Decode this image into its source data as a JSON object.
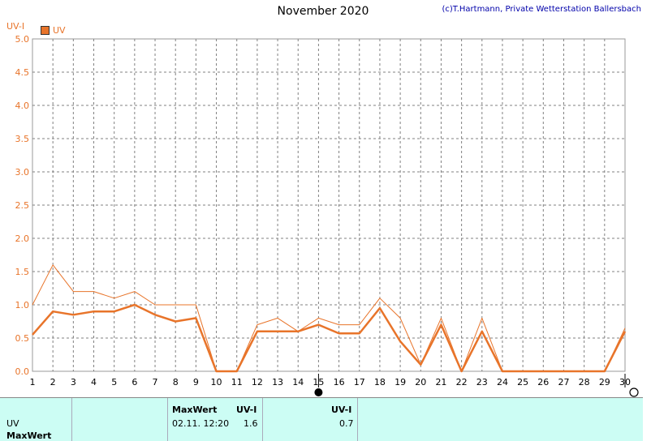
{
  "title": "November 2020",
  "copyright": "(c)T.Hartmann, Private Wetterstation Ballersbach",
  "y_unit": "UV-I",
  "legend": {
    "label": "UV",
    "color": "#e8742a"
  },
  "chart_data": {
    "type": "line",
    "title": "November 2020",
    "ylabel": "UV-I",
    "ylim": [
      0,
      5
    ],
    "yticks": [
      "0.0",
      "0.5",
      "1.0",
      "1.5",
      "2.0",
      "2.5",
      "3.0",
      "3.5",
      "4.0",
      "4.5",
      "5.0"
    ],
    "x": [
      1,
      2,
      3,
      4,
      5,
      6,
      7,
      8,
      9,
      10,
      11,
      12,
      13,
      14,
      15,
      16,
      17,
      18,
      19,
      20,
      21,
      22,
      23,
      24,
      25,
      26,
      27,
      28,
      29,
      30
    ],
    "series": [
      {
        "name": "UV",
        "color": "#e8742a",
        "line": "thick",
        "values": [
          0.55,
          0.9,
          0.85,
          0.9,
          0.9,
          1.0,
          0.85,
          0.75,
          0.8,
          0.0,
          0.0,
          0.6,
          0.6,
          0.6,
          0.7,
          0.57,
          0.57,
          0.95,
          0.45,
          0.1,
          0.7,
          0.0,
          0.6,
          0.0,
          0.0,
          0.0,
          0.0,
          0.0,
          0.0,
          0.6
        ]
      },
      {
        "color": "#e8742a",
        "line": "thin",
        "values": [
          1.0,
          1.6,
          1.2,
          1.2,
          1.1,
          1.2,
          1.0,
          1.0,
          1.0,
          0.0,
          0.0,
          0.7,
          0.8,
          0.6,
          0.8,
          0.7,
          0.7,
          1.1,
          0.8,
          0.1,
          0.8,
          0.0,
          0.8,
          0.0,
          0.0,
          0.0,
          0.0,
          0.0,
          0.0,
          0.65
        ]
      }
    ],
    "grid": true,
    "moon_phases": [
      {
        "day": 15,
        "phase": "new-moon"
      },
      {
        "day": 30,
        "phase": "full-moon"
      }
    ]
  },
  "table": {
    "row1_label": "UV",
    "row2_label": "MaxWert",
    "maxwert_header": "MaxWert",
    "unit_header1": "UV-I",
    "maxwert_time": "02.11.  12:20",
    "maxwert_value": "1.6",
    "unit_header2": "UV-I",
    "avg_value": "0.7"
  }
}
